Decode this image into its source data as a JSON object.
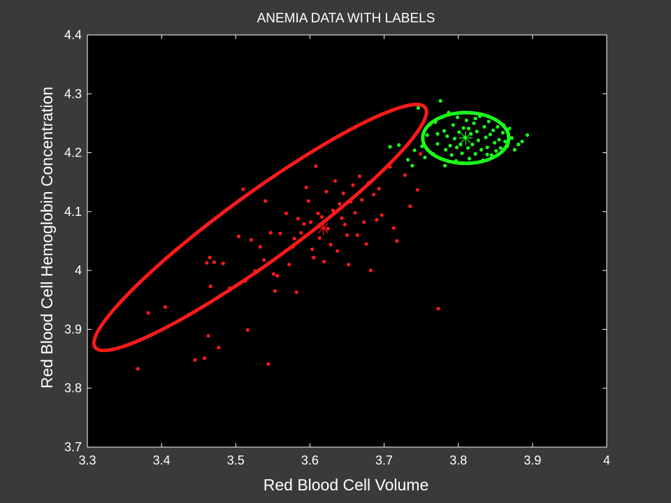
{
  "chart_data": {
    "type": "scatter",
    "title": "ANEMIA DATA WITH LABELS",
    "xlabel": "Red Blood Cell Volume",
    "ylabel": "Red Blood Cell Hemoglobin Concentration",
    "xlim": [
      3.3,
      4.0
    ],
    "ylim": [
      3.7,
      4.4
    ],
    "xticks": [
      3.3,
      3.4,
      3.5,
      3.6,
      3.7,
      3.8,
      3.9,
      4.0
    ],
    "xtick_labels": [
      "3.3",
      "3.4",
      "3.5",
      "3.6",
      "3.7",
      "3.8",
      "3.9",
      "4"
    ],
    "yticks": [
      3.7,
      3.8,
      3.9,
      4.0,
      4.1,
      4.2,
      4.3,
      4.4
    ],
    "ytick_labels": [
      "3.7",
      "3.8",
      "3.9",
      "4",
      "4.1",
      "4.2",
      "4.3",
      "4.4"
    ],
    "grid": false,
    "background": "#000000",
    "figure_background": "#3a3a3a",
    "series": [
      {
        "color": "#ff1a1a",
        "marker": "dot",
        "center": [
          3.618,
          4.072
        ],
        "ellipse": {
          "cx": 3.533,
          "cy": 4.073,
          "rx": 0.275,
          "ry": 0.058,
          "angle_deg": -36
        },
        "points": [
          [
            3.368,
            3.833
          ],
          [
            3.382,
            3.928
          ],
          [
            3.405,
            3.938
          ],
          [
            3.445,
            3.848
          ],
          [
            3.458,
            3.851
          ],
          [
            3.461,
            4.013
          ],
          [
            3.463,
            3.889
          ],
          [
            3.465,
            4.022
          ],
          [
            3.466,
            3.973
          ],
          [
            3.471,
            4.014
          ],
          [
            3.477,
            3.869
          ],
          [
            3.483,
            4.012
          ],
          [
            3.492,
            3.97
          ],
          [
            3.504,
            4.058
          ],
          [
            3.51,
            4.138
          ],
          [
            3.513,
            3.982
          ],
          [
            3.516,
            3.899
          ],
          [
            3.521,
            4.052
          ],
          [
            3.526,
            3.999
          ],
          [
            3.533,
            4.04
          ],
          [
            3.538,
            4.018
          ],
          [
            3.54,
            4.118
          ],
          [
            3.544,
            3.841
          ],
          [
            3.547,
            4.064
          ],
          [
            3.551,
            3.994
          ],
          [
            3.553,
            3.965
          ],
          [
            3.556,
            3.991
          ],
          [
            3.56,
            4.063
          ],
          [
            3.568,
            4.097
          ],
          [
            3.572,
            4.01
          ],
          [
            3.577,
            4.04
          ],
          [
            3.579,
            4.054
          ],
          [
            3.582,
            3.963
          ],
          [
            3.584,
            4.088
          ],
          [
            3.588,
            4.064
          ],
          [
            3.592,
            4.079
          ],
          [
            3.595,
            4.141
          ],
          [
            3.598,
            4.118
          ],
          [
            3.601,
            4.082
          ],
          [
            3.603,
            4.036
          ],
          [
            3.605,
            4.022
          ],
          [
            3.608,
            4.177
          ],
          [
            3.611,
            4.097
          ],
          [
            3.613,
            4.055
          ],
          [
            3.616,
            4.091
          ],
          [
            3.619,
            4.015
          ],
          [
            3.622,
            4.134
          ],
          [
            3.624,
            4.071
          ],
          [
            3.628,
            4.044
          ],
          [
            3.631,
            4.102
          ],
          [
            3.634,
            4.152
          ],
          [
            3.637,
            4.033
          ],
          [
            3.64,
            4.113
          ],
          [
            3.643,
            4.089
          ],
          [
            3.645,
            4.131
          ],
          [
            3.647,
            4.078
          ],
          [
            3.65,
            4.06
          ],
          [
            3.652,
            4.01
          ],
          [
            3.655,
            4.117
          ],
          [
            3.658,
            4.145
          ],
          [
            3.661,
            4.098
          ],
          [
            3.664,
            4.06
          ],
          [
            3.667,
            4.16
          ],
          [
            3.67,
            4.12
          ],
          [
            3.673,
            4.082
          ],
          [
            3.676,
            4.045
          ],
          [
            3.679,
            4.149
          ],
          [
            3.682,
            4.0
          ],
          [
            3.686,
            4.129
          ],
          [
            3.69,
            4.086
          ],
          [
            3.693,
            4.139
          ],
          [
            3.697,
            4.094
          ],
          [
            3.708,
            4.176
          ],
          [
            3.713,
            4.072
          ],
          [
            3.717,
            4.05
          ],
          [
            3.728,
            4.162
          ],
          [
            3.735,
            4.109
          ],
          [
            3.745,
            4.137
          ],
          [
            3.749,
            4.198
          ],
          [
            3.773,
            3.935
          ]
        ]
      },
      {
        "color": "#1aff1a",
        "marker": "dot",
        "center": [
          3.81,
          4.225
        ],
        "ellipse": {
          "cx": 3.81,
          "cy": 4.225,
          "rx": 0.058,
          "ry": 0.043,
          "angle_deg": 0
        },
        "points": [
          [
            3.708,
            4.21
          ],
          [
            3.72,
            4.213
          ],
          [
            3.732,
            4.188
          ],
          [
            3.738,
            4.178
          ],
          [
            3.741,
            4.204
          ],
          [
            3.746,
            4.276
          ],
          [
            3.751,
            4.211
          ],
          [
            3.755,
            4.192
          ],
          [
            3.758,
            4.23
          ],
          [
            3.762,
            4.248
          ],
          [
            3.766,
            4.198
          ],
          [
            3.769,
            4.252
          ],
          [
            3.772,
            4.215
          ],
          [
            3.776,
            4.288
          ],
          [
            3.778,
            4.26
          ],
          [
            3.781,
            4.237
          ],
          [
            3.783,
            4.205
          ],
          [
            3.785,
            4.228
          ],
          [
            3.787,
            4.268
          ],
          [
            3.789,
            4.212
          ],
          [
            3.791,
            4.196
          ],
          [
            3.793,
            4.247
          ],
          [
            3.795,
            4.224
          ],
          [
            3.797,
            4.186
          ],
          [
            3.799,
            4.26
          ],
          [
            3.801,
            4.235
          ],
          [
            3.803,
            4.214
          ],
          [
            3.805,
            4.199
          ],
          [
            3.807,
            4.242
          ],
          [
            3.809,
            4.226
          ],
          [
            3.811,
            4.255
          ],
          [
            3.813,
            4.208
          ],
          [
            3.815,
            4.19
          ],
          [
            3.817,
            4.232
          ],
          [
            3.819,
            4.214
          ],
          [
            3.821,
            4.25
          ],
          [
            3.823,
            4.198
          ],
          [
            3.825,
            4.236
          ],
          [
            3.827,
            4.221
          ],
          [
            3.829,
            4.262
          ],
          [
            3.831,
            4.205
          ],
          [
            3.833,
            4.187
          ],
          [
            3.835,
            4.244
          ],
          [
            3.837,
            4.226
          ],
          [
            3.839,
            4.209
          ],
          [
            3.841,
            4.253
          ],
          [
            3.843,
            4.231
          ],
          [
            3.845,
            4.196
          ],
          [
            3.847,
            4.238
          ],
          [
            3.849,
            4.217
          ],
          [
            3.851,
            4.203
          ],
          [
            3.853,
            4.244
          ],
          [
            3.855,
            4.222
          ],
          [
            3.857,
            4.208
          ],
          [
            3.86,
            4.234
          ],
          [
            3.863,
            4.219
          ],
          [
            3.866,
            4.211
          ],
          [
            3.869,
            4.241
          ],
          [
            3.872,
            4.225
          ],
          [
            3.876,
            4.205
          ],
          [
            3.881,
            4.214
          ],
          [
            3.886,
            4.219
          ],
          [
            3.893,
            4.23
          ],
          [
            3.823,
            4.258
          ],
          [
            3.798,
            4.209
          ],
          [
            3.814,
            4.241
          ],
          [
            3.839,
            4.197
          ],
          [
            3.861,
            4.247
          ],
          [
            3.782,
            4.178
          ],
          [
            3.772,
            4.232
          ]
        ]
      }
    ]
  }
}
